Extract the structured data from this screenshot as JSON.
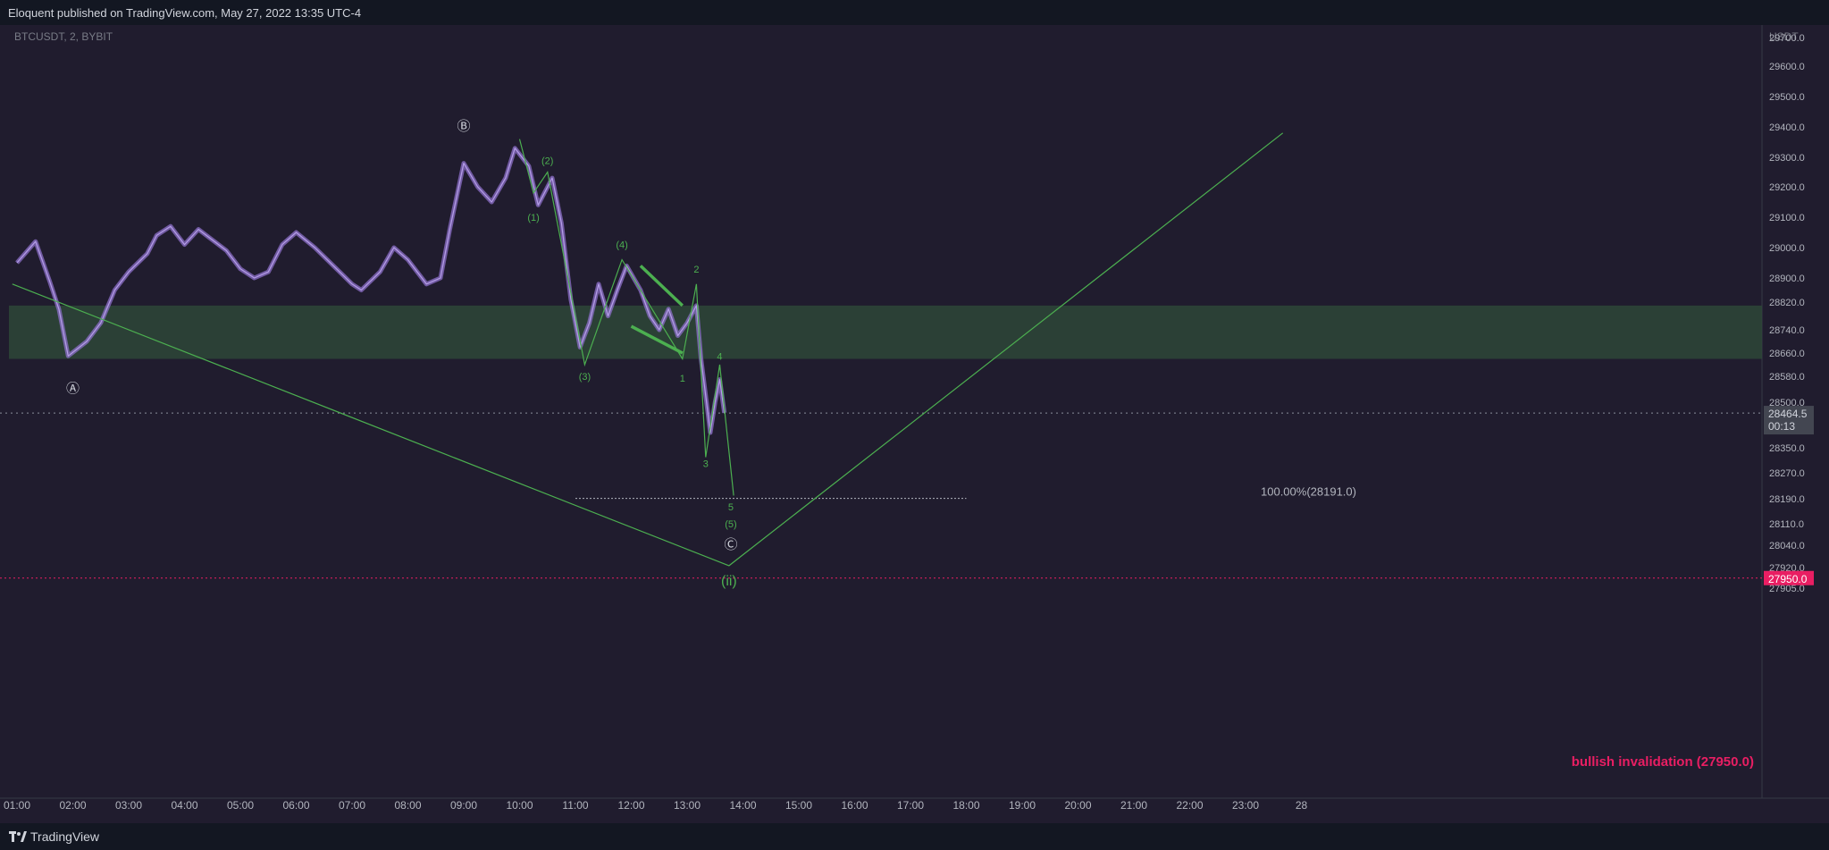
{
  "header": {
    "publish_line": "Eloquent published on TradingView.com, May 27, 2022 13:35 UTC-4"
  },
  "footer": {
    "brand": "TradingView"
  },
  "colors": {
    "background": "#201c2e",
    "frame": "#131722",
    "candle": "#8c6fc9",
    "wave": "#4caf50",
    "zone": "#2e4a38",
    "invalidation": "#e91e63",
    "text": "#b2b5be"
  },
  "chart_data": {
    "type": "candlestick",
    "symbol_label": "BTCUSDT, 2, BYBIT",
    "currency": "USDT",
    "y_ticks": [
      "29700.0",
      "29600.0",
      "29500.0",
      "29400.0",
      "29300.0",
      "29200.0",
      "29100.0",
      "29000.0",
      "28900.0",
      "28820.0",
      "28740.0",
      "28660.0",
      "28580.0",
      "28500.0",
      "28350.0",
      "28270.0",
      "28190.0",
      "28110.0",
      "28040.0",
      "27920.0",
      "27905.0"
    ],
    "x_ticks": [
      "01:00",
      "02:00",
      "03:00",
      "04:00",
      "05:00",
      "06:00",
      "07:00",
      "08:00",
      "09:00",
      "10:00",
      "11:00",
      "12:00",
      "13:00",
      "14:00",
      "15:00",
      "16:00",
      "17:00",
      "18:00",
      "19:00",
      "20:00",
      "21:00",
      "22:00",
      "23:00",
      "28"
    ],
    "last_price": {
      "value": "28464.5",
      "countdown": "00:13"
    },
    "invalidation": {
      "value": "27950.0",
      "label": "bullish invalidation (27950.0)"
    },
    "fib_level": {
      "label": "100.00%(28191.0)",
      "price": 28191.0
    },
    "zone": {
      "from": 28640,
      "to": 28810
    },
    "price_path": [
      [
        "01:00",
        28950
      ],
      [
        "01:20",
        29020
      ],
      [
        "01:35",
        28890
      ],
      [
        "01:45",
        28800
      ],
      [
        "01:55",
        28650
      ],
      [
        "02:15",
        28700
      ],
      [
        "02:30",
        28760
      ],
      [
        "02:45",
        28860
      ],
      [
        "03:00",
        28920
      ],
      [
        "03:20",
        28980
      ],
      [
        "03:30",
        29040
      ],
      [
        "03:45",
        29070
      ],
      [
        "04:00",
        29010
      ],
      [
        "04:15",
        29060
      ],
      [
        "04:45",
        28990
      ],
      [
        "05:00",
        28930
      ],
      [
        "05:15",
        28900
      ],
      [
        "05:30",
        28920
      ],
      [
        "05:45",
        29010
      ],
      [
        "06:00",
        29050
      ],
      [
        "06:20",
        29000
      ],
      [
        "06:40",
        28940
      ],
      [
        "07:00",
        28880
      ],
      [
        "07:10",
        28860
      ],
      [
        "07:30",
        28920
      ],
      [
        "07:45",
        29000
      ],
      [
        "08:00",
        28960
      ],
      [
        "08:20",
        28880
      ],
      [
        "08:35",
        28900
      ],
      [
        "08:45",
        29060
      ],
      [
        "09:00",
        29280
      ],
      [
        "09:15",
        29200
      ],
      [
        "09:30",
        29150
      ],
      [
        "09:45",
        29230
      ],
      [
        "09:55",
        29330
      ],
      [
        "10:10",
        29270
      ],
      [
        "10:20",
        29140
      ],
      [
        "10:35",
        29230
      ],
      [
        "10:45",
        29080
      ],
      [
        "10:55",
        28830
      ],
      [
        "11:05",
        28680
      ],
      [
        "11:15",
        28760
      ],
      [
        "11:25",
        28880
      ],
      [
        "11:35",
        28780
      ],
      [
        "11:45",
        28860
      ],
      [
        "11:55",
        28940
      ],
      [
        "12:10",
        28860
      ],
      [
        "12:20",
        28780
      ],
      [
        "12:30",
        28740
      ],
      [
        "12:40",
        28800
      ],
      [
        "12:50",
        28720
      ],
      [
        "13:00",
        28760
      ],
      [
        "13:10",
        28810
      ],
      [
        "13:15",
        28640
      ],
      [
        "13:25",
        28400
      ],
      [
        "13:30",
        28500
      ],
      [
        "13:35",
        28570
      ],
      [
        "13:40",
        28465
      ]
    ],
    "wave_lines": [
      [
        [
          "00:55",
          28880
        ],
        [
          "13:45",
          27930
        ],
        [
          "23:40",
          29380
        ]
      ],
      [
        [
          "10:00",
          29360
        ],
        [
          "10:15",
          29180
        ],
        [
          "10:30",
          29250
        ],
        [
          "11:10",
          28620
        ],
        [
          "11:50",
          28960
        ],
        [
          "12:55",
          28640
        ],
        [
          "13:10",
          28880
        ],
        [
          "13:20",
          28320
        ],
        [
          "13:35",
          28620
        ],
        [
          "13:50",
          28200
        ]
      ]
    ],
    "wedge_lines": [
      [
        [
          "12:10",
          28940
        ],
        [
          "12:55",
          28810
        ]
      ],
      [
        [
          "12:00",
          28750
        ],
        [
          "12:55",
          28660
        ]
      ]
    ],
    "wave_labels": [
      {
        "text": "Ⓐ",
        "at": [
          "02:00",
          28540
        ],
        "color": "#d1d4dc"
      },
      {
        "text": "Ⓑ",
        "at": [
          "09:00",
          29400
        ],
        "color": "#d1d4dc"
      },
      {
        "text": "Ⓒ",
        "at": [
          "13:47",
          28040
        ],
        "color": "#d1d4dc"
      },
      {
        "text": "(1)",
        "at": [
          "10:15",
          29100
        ],
        "color": "#4caf50"
      },
      {
        "text": "(2)",
        "at": [
          "10:30",
          29290
        ],
        "color": "#4caf50"
      },
      {
        "text": "(3)",
        "at": [
          "11:10",
          28580
        ],
        "color": "#4caf50"
      },
      {
        "text": "(4)",
        "at": [
          "11:50",
          29010
        ],
        "color": "#4caf50"
      },
      {
        "text": "(5)",
        "at": [
          "13:47",
          28110
        ],
        "color": "#4caf50"
      },
      {
        "text": "(ii)",
        "at": [
          "13:45",
          27930
        ],
        "color": "#4caf50"
      },
      {
        "text": "1",
        "at": [
          "12:55",
          28575
        ],
        "color": "#4caf50"
      },
      {
        "text": "2",
        "at": [
          "13:10",
          28930
        ],
        "color": "#4caf50"
      },
      {
        "text": "3",
        "at": [
          "13:20",
          28300
        ],
        "color": "#4caf50"
      },
      {
        "text": "4",
        "at": [
          "13:35",
          28650
        ],
        "color": "#4caf50"
      },
      {
        "text": "5",
        "at": [
          "13:47",
          28165
        ],
        "color": "#4caf50"
      }
    ]
  }
}
